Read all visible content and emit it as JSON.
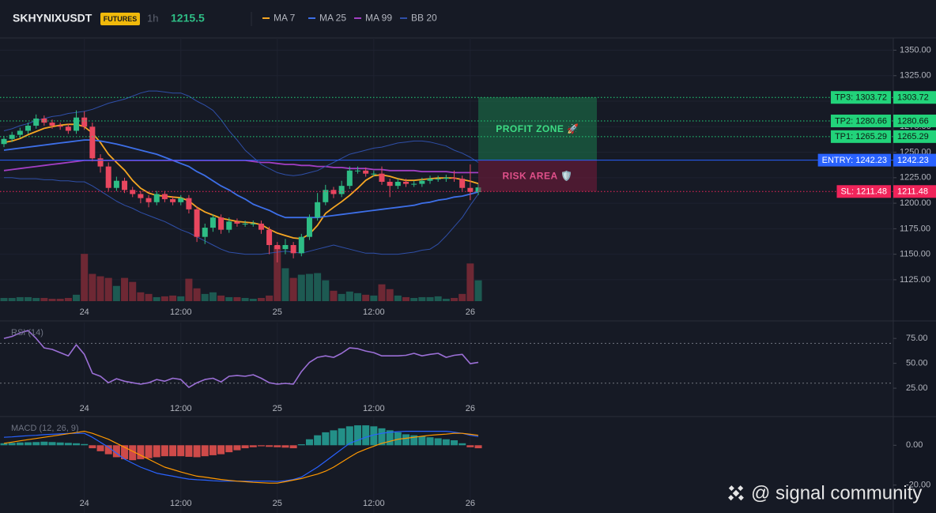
{
  "chart_data": [
    {
      "type": "candlestick",
      "title": "SKHYNIXUSDT",
      "badge": "FUTURES",
      "interval": "1h",
      "last_price": 1215.5,
      "categories": [
        null,
        null,
        null,
        null,
        null,
        null,
        null,
        null,
        null,
        null,
        "24",
        null,
        null,
        null,
        null,
        null,
        null,
        null,
        null,
        null,
        null,
        null,
        "12:00",
        null,
        null,
        null,
        null,
        null,
        null,
        null,
        null,
        null,
        null,
        null,
        "25",
        null,
        null,
        null,
        null,
        null,
        null,
        null,
        null,
        null,
        null,
        null,
        "12:00",
        null,
        null,
        null,
        null,
        null,
        null,
        null,
        null,
        null,
        null,
        null,
        "26",
        null
      ],
      "open": [
        1258,
        1263,
        1267,
        1271,
        1276,
        1283,
        1279,
        1276,
        1275,
        1271,
        1284,
        1275,
        1244,
        1236,
        1215,
        1222,
        1213,
        1209,
        1205,
        1201,
        1209,
        1204,
        1201,
        1205,
        1194,
        1167,
        1176,
        1186,
        1174,
        1182,
        1180,
        1180,
        1180,
        1174,
        1159,
        1155,
        1159,
        1151,
        1167,
        1186,
        1201,
        1213,
        1209,
        1217,
        1232,
        1232,
        1229,
        1229,
        1221,
        1217,
        1221,
        1219,
        1219,
        1222,
        1224,
        1224,
        1225,
        1224,
        1215,
        1211
      ],
      "high": [
        1266,
        1270,
        1274,
        1279,
        1287,
        1286,
        1282,
        1279,
        1278,
        1291,
        1290,
        1279,
        1248,
        1240,
        1226,
        1225,
        1216,
        1212,
        1208,
        1212,
        1212,
        1207,
        1208,
        1208,
        1197,
        1180,
        1189,
        1189,
        1186,
        1185,
        1183,
        1183,
        1183,
        1177,
        1162,
        1165,
        1162,
        1170,
        1189,
        1210,
        1218,
        1216,
        1222,
        1236,
        1236,
        1235,
        1232,
        1236,
        1224,
        1224,
        1224,
        1222,
        1225,
        1227,
        1227,
        1228,
        1232,
        1227,
        1238,
        1219
      ],
      "low": [
        1255,
        1260,
        1264,
        1268,
        1273,
        1276,
        1273,
        1272,
        1268,
        1268,
        1272,
        1241,
        1230,
        1212,
        1212,
        1210,
        1206,
        1200,
        1196,
        1198,
        1201,
        1198,
        1198,
        1190,
        1162,
        1160,
        1172,
        1170,
        1171,
        1177,
        1177,
        1177,
        1170,
        1150,
        1142,
        1150,
        1146,
        1148,
        1164,
        1183,
        1198,
        1205,
        1206,
        1214,
        1229,
        1226,
        1226,
        1218,
        1206,
        1214,
        1216,
        1216,
        1216,
        1219,
        1221,
        1221,
        1221,
        1212,
        1203,
        1208
      ],
      "close": [
        1263,
        1267,
        1271,
        1276,
        1283,
        1279,
        1276,
        1275,
        1271,
        1284,
        1275,
        1244,
        1236,
        1215,
        1222,
        1213,
        1209,
        1205,
        1201,
        1209,
        1204,
        1201,
        1205,
        1194,
        1167,
        1176,
        1186,
        1174,
        1182,
        1180,
        1180,
        1180,
        1174,
        1159,
        1155,
        1159,
        1151,
        1167,
        1186,
        1201,
        1213,
        1209,
        1217,
        1232,
        1232,
        1229,
        1229,
        1221,
        1217,
        1221,
        1219,
        1219,
        1222,
        1224,
        1224,
        1225,
        1224,
        1215,
        1211,
        1215.5
      ],
      "volume": [
        4,
        4,
        5,
        5,
        4,
        4,
        3,
        3,
        4,
        8,
        59,
        34,
        31,
        29,
        19,
        29,
        24,
        11,
        9,
        5,
        6,
        7,
        6,
        28,
        16,
        9,
        11,
        7,
        5,
        5,
        4,
        3,
        4,
        7,
        69,
        41,
        29,
        33,
        34,
        35,
        26,
        13,
        9,
        12,
        10,
        8,
        7,
        21,
        15,
        7,
        5,
        4,
        5,
        5,
        6,
        3,
        4,
        9,
        47,
        26
      ],
      "up_color": "#2ebd85",
      "down_color": "#e8475f",
      "volume_up_color": "#1d5a52",
      "volume_down_color": "#6e2834",
      "overlays": [
        {
          "name": "MA 7",
          "color": "#f5a623",
          "values": [
            1259.5,
            1261,
            1263.4,
            1267.2,
            1270.3,
            1273.4,
            1275,
            1276.5,
            1277.3,
            1277.3,
            1275,
            1268.8,
            1259.5,
            1248,
            1240,
            1232.4,
            1222.4,
            1214.7,
            1210,
            1207.7,
            1207,
            1206,
            1205.4,
            1202.3,
            1196,
            1191.4,
            1188.4,
            1185.3,
            1183.7,
            1182.2,
            1181.4,
            1180.7,
            1179,
            1174.5,
            1170.7,
            1168.3,
            1166,
            1165.2,
            1169.8,
            1178.3,
            1190,
            1196,
            1201.5,
            1207.7,
            1214.7,
            1222.4,
            1227,
            1227.8,
            1226.3,
            1224,
            1222.4,
            1222.4,
            1223.2,
            1224,
            1224.7,
            1224.7,
            1224.7,
            1223.2,
            1221.6,
            1219.3
          ]
        },
        {
          "name": "MA 25",
          "color": "#3d6fe8",
          "values": [
            1252,
            1253,
            1254,
            1255,
            1256,
            1257,
            1258,
            1259,
            1260,
            1261,
            1262,
            1262,
            1261,
            1259.5,
            1258,
            1256,
            1254,
            1252,
            1250,
            1248,
            1245,
            1242,
            1239,
            1236,
            1231,
            1227,
            1222,
            1217,
            1213,
            1208,
            1204,
            1199,
            1196,
            1193,
            1189,
            1186,
            1186,
            1186,
            1186,
            1186,
            1187,
            1188,
            1189,
            1190,
            1191,
            1192,
            1193,
            1194,
            1195,
            1196,
            1197,
            1198,
            1200,
            1201,
            1203,
            1204,
            1206,
            1207,
            1209,
            1211
          ]
        },
        {
          "name": "MA 99",
          "color": "#a23fc4",
          "values": [
            1232,
            1233,
            1234,
            1235,
            1236,
            1237,
            1238,
            1239,
            1240,
            1241,
            1242,
            1242,
            1242,
            1242,
            1242,
            1242,
            1242,
            1242,
            1242,
            1242,
            1242,
            1242,
            1242,
            1242,
            1242,
            1242,
            1242,
            1242,
            1242,
            1242,
            1242,
            1241,
            1240,
            1240,
            1239,
            1238,
            1238,
            1237,
            1237,
            1236,
            1236,
            1235,
            1235,
            1234,
            1234,
            1234,
            1233,
            1233,
            1232,
            1232,
            1232,
            1232,
            1231,
            1231,
            1231,
            1231,
            1230,
            1230,
            1230,
            1230
          ]
        },
        {
          "name": "BB 20",
          "color": "#2f4fa8",
          "upper": [
            1271,
            1273,
            1276,
            1278,
            1281,
            1283,
            1285,
            1286,
            1288,
            1289,
            1290,
            1292,
            1295,
            1298,
            1300,
            1302,
            1305,
            1308,
            1310,
            1310,
            1309,
            1308,
            1308,
            1305,
            1300,
            1296,
            1291,
            1282,
            1271,
            1262,
            1252,
            1245,
            1238,
            1234,
            1230,
            1228,
            1227,
            1228,
            1230,
            1232,
            1236,
            1240,
            1244,
            1248,
            1250,
            1252,
            1254,
            1255,
            1257,
            1259,
            1260,
            1261,
            1261,
            1260,
            1258,
            1256,
            1252,
            1249,
            1245,
            1240
          ],
          "lower": [
            1225,
            1225,
            1224,
            1224,
            1224,
            1223,
            1223,
            1222,
            1222,
            1221,
            1221,
            1217,
            1212,
            1207,
            1202,
            1198,
            1195,
            1191,
            1188,
            1185,
            1182,
            1178,
            1174,
            1171,
            1167,
            1163,
            1159,
            1155,
            1152,
            1151,
            1150,
            1150,
            1150,
            1151,
            1152,
            1153,
            1152,
            1151,
            1153,
            1155,
            1157,
            1159,
            1157,
            1155,
            1153,
            1151,
            1151,
            1150,
            1150,
            1150,
            1151,
            1152,
            1154,
            1155,
            1160,
            1168,
            1177,
            1186,
            1198,
            1209
          ]
        }
      ],
      "ylim": [
        1104,
        1362
      ],
      "yticks": [
        {
          "value": 1125,
          "label": "1125.00"
        },
        {
          "value": 1150,
          "label": "1150.00"
        },
        {
          "value": 1175,
          "label": "1175.00"
        },
        {
          "value": 1200,
          "label": "1200.00"
        },
        {
          "value": 1225,
          "label": "1225.00"
        },
        {
          "value": 1250,
          "label": "1250.00"
        },
        {
          "value": 1275,
          "label": "1275.00"
        },
        {
          "value": 1300,
          "label": "1300.00"
        },
        {
          "value": 1325,
          "label": "1325.00"
        },
        {
          "value": 1350,
          "label": "1350.00"
        }
      ],
      "grid": true,
      "levels": [
        {
          "label": "TP3: 1303.72",
          "value": 1303.72,
          "color": "#22d37a",
          "text_color": "#0d1a12",
          "style": "dotted"
        },
        {
          "label": "TP2: 1280.66",
          "value": 1280.66,
          "color": "#22d37a",
          "text_color": "#0d1a12",
          "style": "dotted"
        },
        {
          "label": "TP1: 1265.29",
          "value": 1265.29,
          "color": "#22d37a",
          "text_color": "#0d1a12",
          "style": "dotted"
        },
        {
          "label": "ENTRY: 1242.23",
          "value": 1242.23,
          "color": "#2962ff",
          "text_color": "#ffffff",
          "style": "solid"
        },
        {
          "label": "SL: 1211.48",
          "value": 1211.48,
          "color": "#f0245a",
          "text_color": "#ffffff",
          "style": "dotted"
        }
      ],
      "zones": [
        {
          "label": "PROFIT ZONE 🚀",
          "color": "#1c7a4d",
          "text_color": "#3ddc84"
        },
        {
          "label": "RISK AREA 🛡️",
          "color": "#7a1c3c",
          "text_color": "#e0508a"
        }
      ]
    },
    {
      "type": "line",
      "title": "RSI (14)",
      "color": "#9b6fd6",
      "values": [
        75,
        77,
        80.5,
        83,
        75,
        65.5,
        64,
        60.7,
        57.5,
        68.7,
        59,
        40,
        37,
        30.5,
        34.5,
        32,
        30.5,
        29,
        30.5,
        33.7,
        32,
        35,
        33.7,
        25.8,
        30.5,
        33.7,
        35,
        31.3,
        37,
        37.7,
        37,
        38.5,
        35,
        30.5,
        29,
        29.8,
        29,
        41.7,
        51,
        56,
        57.5,
        56,
        60,
        65.5,
        64.7,
        62.3,
        60.7,
        57.5,
        57.5,
        57.5,
        58,
        60,
        57.5,
        59,
        60,
        56,
        58,
        59,
        49.6,
        51
      ],
      "bands": [
        70,
        30
      ],
      "ylim": [
        6,
        91
      ],
      "yticks": [
        {
          "value": 75,
          "label": "75.00"
        },
        {
          "value": 50,
          "label": "50.00"
        },
        {
          "value": 25,
          "label": "25.00"
        }
      ]
    },
    {
      "type": "macd",
      "title": "MACD (12, 26, 9)",
      "histogram": [
        1,
        1.2,
        1.4,
        1.5,
        1.6,
        1.8,
        1.6,
        1.4,
        1.2,
        1.0,
        0.6,
        -1.5,
        -3,
        -4.5,
        -6,
        -7,
        -7.5,
        -7,
        -6.5,
        -6,
        -5.5,
        -5.5,
        -5.5,
        -5.8,
        -6,
        -5.5,
        -5,
        -4.5,
        -3.5,
        -2.5,
        -1.5,
        -1,
        -0.5,
        -0.8,
        -1,
        -1.2,
        -1.5,
        0.5,
        3,
        5,
        6.5,
        7.5,
        8.5,
        9.5,
        10,
        10,
        9.5,
        8.5,
        7.5,
        6.5,
        5.5,
        5,
        4.5,
        4,
        3.5,
        3,
        2.5,
        1,
        -1,
        -1.5
      ],
      "macd": [
        4,
        4.2,
        4.5,
        4.8,
        5,
        5.3,
        5.5,
        5.7,
        5.9,
        6,
        6,
        4,
        1.5,
        -1,
        -4,
        -7,
        -9,
        -11,
        -12.5,
        -14,
        -14.8,
        -15.5,
        -16.3,
        -17,
        -17.3,
        -17.5,
        -17.8,
        -18,
        -18,
        -18,
        -18,
        -18,
        -18,
        -18,
        -18.2,
        -17.8,
        -17.2,
        -16,
        -13.5,
        -11,
        -8,
        -5,
        -2,
        1,
        2.5,
        4,
        5.2,
        6,
        6.5,
        6.8,
        7,
        7,
        7,
        7,
        7,
        7,
        6.5,
        6,
        5,
        4.4
      ],
      "signal": [
        1,
        1.6,
        2.2,
        2.8,
        3.4,
        4,
        4.6,
        5.2,
        5.8,
        6.4,
        7,
        6,
        4.5,
        3,
        1,
        -1,
        -3,
        -5,
        -7,
        -9,
        -11,
        -12.2,
        -13.4,
        -14.5,
        -15.5,
        -16,
        -16.6,
        -17.2,
        -17.6,
        -18,
        -18.3,
        -18.6,
        -18.8,
        -19,
        -19,
        -18.3,
        -17.5,
        -16.7,
        -15.5,
        -14.5,
        -13,
        -11,
        -8.5,
        -6,
        -3.6,
        -2,
        -0.5,
        1,
        2,
        3,
        3.5,
        4,
        4.5,
        5,
        5.3,
        5.6,
        6,
        6,
        5.5,
        5
      ],
      "histogram_up_color": "#26a69a",
      "histogram_down_color": "#ef5350",
      "macd_color": "#2962ff",
      "signal_color": "#ff9800",
      "ylim": [
        -34,
        14
      ],
      "yticks": [
        {
          "value": 0,
          "label": "0.00"
        },
        {
          "value": -20,
          "label": "-20.00"
        }
      ]
    }
  ],
  "watermark": "@ signal community"
}
